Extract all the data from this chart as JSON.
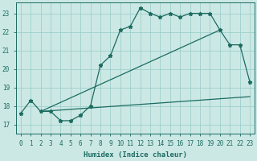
{
  "xlabel": "Humidex (Indice chaleur)",
  "bg_color": "#cce8e5",
  "grid_color": "#9ecfcb",
  "line_color": "#1b6b60",
  "xlim": [
    -0.5,
    23.5
  ],
  "ylim": [
    16.5,
    23.6
  ],
  "xticks": [
    0,
    1,
    2,
    3,
    4,
    5,
    6,
    7,
    8,
    9,
    10,
    11,
    12,
    13,
    14,
    15,
    16,
    17,
    18,
    19,
    20,
    21,
    22,
    23
  ],
  "yticks": [
    17,
    18,
    19,
    20,
    21,
    22,
    23
  ],
  "main_x": [
    0,
    1,
    2,
    3,
    4,
    5,
    6,
    7,
    8,
    9,
    10,
    11,
    12,
    13,
    14,
    15,
    16,
    17,
    18,
    19,
    20,
    21,
    22,
    23
  ],
  "main_y": [
    17.6,
    18.3,
    17.7,
    17.7,
    17.2,
    17.2,
    17.5,
    18.0,
    20.2,
    20.7,
    22.1,
    22.3,
    23.3,
    23.0,
    22.8,
    23.0,
    22.8,
    23.0,
    23.0,
    23.0,
    22.1,
    21.3,
    21.3,
    19.3
  ],
  "line1_x": [
    2,
    20
  ],
  "line1_y": [
    17.7,
    22.1
  ],
  "line2_x": [
    2,
    23
  ],
  "line2_y": [
    17.7,
    18.5
  ],
  "marker": "*",
  "markersize": 3.5,
  "linewidth": 0.9,
  "xlabel_fontsize": 6.5,
  "tick_fontsize": 5.5
}
